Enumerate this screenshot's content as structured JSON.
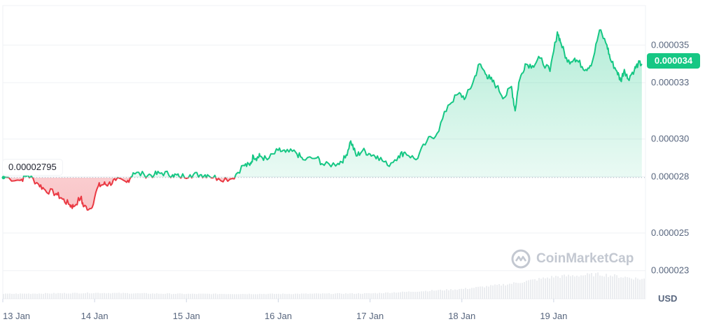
{
  "chart_data": {
    "type": "area",
    "baseline": {
      "value": 2.795e-05,
      "label": "0.00002795"
    },
    "current_price": {
      "value": 3.4e-05,
      "label": "0.000034"
    },
    "currency_label": "USD",
    "watermark": "CoinMarketCap",
    "colors": {
      "up": "#16c784",
      "down": "#ea3943",
      "grid": "#eff2f5",
      "text": "#58667e"
    },
    "y_ticks": [
      {
        "value": 3.5e-05,
        "label": "0.000035"
      },
      {
        "value": 3.3e-05,
        "label": "0.000033"
      },
      {
        "value": 3e-05,
        "label": "0.000030"
      },
      {
        "value": 2.8e-05,
        "label": "0.000028"
      },
      {
        "value": 2.5e-05,
        "label": "0.000025"
      },
      {
        "value": 2.3e-05,
        "label": "0.000023"
      }
    ],
    "x_ticks": [
      {
        "value": 0,
        "label": "13 Jan"
      },
      {
        "value": 1,
        "label": "14 Jan"
      },
      {
        "value": 2,
        "label": "15 Jan"
      },
      {
        "value": 3,
        "label": "16 Jan"
      },
      {
        "value": 4,
        "label": "17 Jan"
      },
      {
        "value": 5,
        "label": "18 Jan"
      },
      {
        "value": 6,
        "label": "19 Jan"
      }
    ],
    "ylim": [
      2.15e-05,
      3.71e-05
    ],
    "xlim": [
      0,
      7.0
    ],
    "series": [
      {
        "x": [
          0,
          0.19,
          0.27,
          0.39,
          0.46,
          0.58,
          0.65,
          0.73,
          0.77,
          0.85,
          0.88,
          0.96,
          1.04,
          1.1,
          1.15,
          1.23,
          1.35,
          1.42,
          1.54,
          1.65,
          1.73,
          1.85,
          1.92,
          2.04,
          2.15,
          2.23,
          2.35,
          2.5,
          2.62,
          2.69,
          2.73,
          2.77,
          2.8,
          2.88,
          3.0,
          3.08,
          3.19,
          3.27,
          3.42,
          3.5,
          3.65,
          3.73,
          3.79,
          3.85,
          3.92,
          4.0,
          4.08,
          4.19,
          4.31,
          4.38,
          4.5,
          4.62,
          4.73,
          4.85,
          4.96,
          5.04,
          5.12,
          5.19,
          5.27,
          5.31,
          5.38,
          5.46,
          5.54,
          5.58,
          5.62,
          5.69,
          5.77,
          5.85,
          5.96,
          6.04,
          6.08,
          6.15,
          6.23,
          6.27,
          6.35,
          6.42,
          6.5,
          6.58,
          6.62,
          6.69,
          6.73,
          6.77,
          6.81,
          6.88,
          6.92,
          6.96
        ],
        "y": [
          2.8e-05,
          2.78e-05,
          2.81e-05,
          2.76e-05,
          2.73e-05,
          2.71e-05,
          2.68e-05,
          2.65e-05,
          2.64e-05,
          2.69e-05,
          2.64e-05,
          2.63e-05,
          2.75e-05,
          2.76e-05,
          2.76e-05,
          2.78e-05,
          2.77e-05,
          2.82e-05,
          2.81e-05,
          2.81e-05,
          2.82e-05,
          2.81e-05,
          2.8e-05,
          2.81e-05,
          2.81e-05,
          2.81e-05,
          2.79e-05,
          2.79e-05,
          2.86e-05,
          2.86e-05,
          2.91e-05,
          2.9e-05,
          2.91e-05,
          2.89e-05,
          2.94e-05,
          2.93e-05,
          2.93e-05,
          2.89e-05,
          2.9e-05,
          2.86e-05,
          2.87e-05,
          2.9e-05,
          2.99e-05,
          2.91e-05,
          2.94e-05,
          2.92e-05,
          2.91e-05,
          2.86e-05,
          2.91e-05,
          2.93e-05,
          2.89e-05,
          2.99e-05,
          3.03e-05,
          3.18e-05,
          3.24e-05,
          3.22e-05,
          3.3e-05,
          3.4e-05,
          3.34e-05,
          3.32e-05,
          3.28e-05,
          3.22e-05,
          3.28e-05,
          3.15e-05,
          3.3e-05,
          3.4e-05,
          3.39e-05,
          3.43e-05,
          3.36e-05,
          3.57e-05,
          3.51e-05,
          3.41e-05,
          3.43e-05,
          3.41e-05,
          3.37e-05,
          3.41e-05,
          3.58e-05,
          3.5e-05,
          3.42e-05,
          3.36e-05,
          3.31e-05,
          3.37e-05,
          3.32e-05,
          3.37e-05,
          3.4e-05,
          3.4e-05
        ]
      }
    ],
    "volume": {
      "x": [
        0,
        1,
        2,
        3,
        4,
        4.5,
        5,
        5.5,
        6,
        6.5,
        6.96
      ],
      "values": [
        1,
        1.2,
        1,
        1,
        1.1,
        1.5,
        2,
        3,
        4.5,
        5,
        4
      ]
    }
  }
}
